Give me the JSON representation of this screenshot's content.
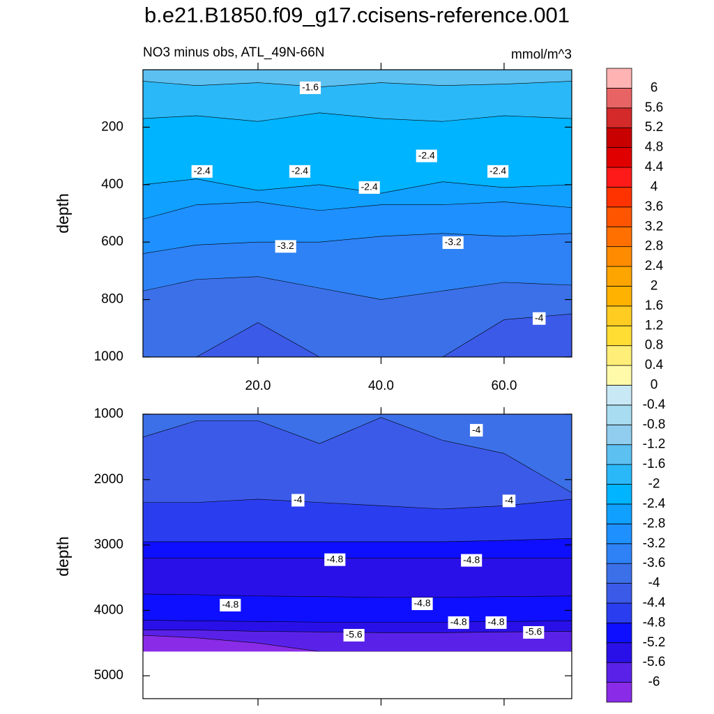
{
  "chart_data": {
    "type": "contour",
    "title": "b.e21.B1850.f09_g17.ccisens-reference.001",
    "subtitle": "NO3 minus obs, ATL_49N-66N",
    "units": "mmol/m^3",
    "x": [
      1.3,
      10,
      20,
      30,
      40,
      50,
      60,
      71
    ],
    "xlim": [
      1.3,
      71
    ],
    "colorbar": {
      "levels": [
        -6,
        -5.6,
        -5.2,
        -4.8,
        -4.4,
        -4,
        -3.6,
        -3.2,
        -2.8,
        -2.4,
        -2,
        -1.6,
        -1.2,
        -0.8,
        -0.4,
        0,
        0.4,
        0.8,
        1.2,
        1.6,
        2,
        2.4,
        2.8,
        3.2,
        3.6,
        4,
        4.4,
        4.8,
        5.2,
        5.6,
        6
      ],
      "colors": [
        "#8a2be8",
        "#5a22e8",
        "#2a10e8",
        "#0f0fff",
        "#2a3ef0",
        "#3c5ae8",
        "#3c70e8",
        "#2e82f5",
        "#1e90ff",
        "#10a0ff",
        "#00b4ff",
        "#2ab8f8",
        "#5cc0f0",
        "#90cdee",
        "#a8dcf0",
        "#c8e8f5",
        "#fffaaa",
        "#ffee77",
        "#ffdd33",
        "#ffcc22",
        "#ffb300",
        "#ffa500",
        "#ff8c00",
        "#ff7000",
        "#ff5500",
        "#ff3300",
        "#ff1a1a",
        "#e00000",
        "#c80000",
        "#d42a2a",
        "#e86464",
        "#ffb3b3"
      ]
    },
    "panels": [
      {
        "ylabel": "depth",
        "ylim": [
          0,
          1000
        ],
        "y_reversed": true,
        "yticks": [
          200,
          400,
          600,
          800,
          1000
        ],
        "xticks": [
          {
            "value": 20,
            "label": "20.0"
          },
          {
            "value": 40,
            "label": "40.0"
          },
          {
            "value": 60,
            "label": "60.0"
          }
        ],
        "show_xtick_labels": true,
        "layers": [
          {
            "class": -1.2,
            "top": [
              0,
              0,
              0,
              0,
              0,
              0,
              0,
              0
            ]
          },
          {
            "class": -1.6,
            "top": [
              40,
              55,
              45,
              60,
              45,
              55,
              50,
              40
            ]
          },
          {
            "class": -2,
            "top": [
              170,
              160,
              180,
              150,
              170,
              180,
              160,
              170
            ]
          },
          {
            "class": -2.4,
            "top": [
              400,
              380,
              420,
              400,
              430,
              390,
              410,
              400
            ]
          },
          {
            "class": -2.8,
            "top": [
              520,
              470,
              460,
              490,
              470,
              470,
              460,
              480
            ]
          },
          {
            "class": -3.2,
            "top": [
              640,
              610,
              600,
              600,
              580,
              570,
              580,
              570
            ]
          },
          {
            "class": -3.6,
            "top": [
              770,
              730,
              720,
              760,
              800,
              770,
              740,
              750
            ]
          },
          {
            "class": -4,
            "top": [
              1000,
              1000,
              880,
              1000,
              1000,
              1000,
              870,
              850
            ]
          }
        ],
        "contour_labels": [
          {
            "value": -1.6,
            "x": 28.5,
            "depth": 63
          },
          {
            "value": -2.4,
            "x": 10.9,
            "depth": 354
          },
          {
            "value": -2.4,
            "x": 26.8,
            "depth": 354
          },
          {
            "value": -2.4,
            "x": 38.1,
            "depth": 410
          },
          {
            "value": -2.4,
            "x": 47.4,
            "depth": 300
          },
          {
            "value": -2.4,
            "x": 59,
            "depth": 354
          },
          {
            "value": -3.2,
            "x": 24.5,
            "depth": 615
          },
          {
            "value": -3.2,
            "x": 51.7,
            "depth": 602
          },
          {
            "value": -4,
            "x": 65.7,
            "depth": 866
          }
        ]
      },
      {
        "ylabel": "depth",
        "ylim": [
          1000,
          5350
        ],
        "y_reversed": true,
        "yticks": [
          1000,
          2000,
          3000,
          4000,
          5000
        ],
        "xticks": [
          20,
          40,
          60
        ],
        "show_xtick_labels": false,
        "data_bottom": 4630,
        "layers": [
          {
            "class": -3.6,
            "top": [
              1000,
              1000,
              1000,
              1000,
              1000,
              1000,
              1000,
              1000
            ]
          },
          {
            "class": -4,
            "top": [
              1350,
              1100,
              1100,
              1450,
              1050,
              1400,
              1600,
              2200
            ]
          },
          {
            "class": -4.4,
            "top": [
              2350,
              2350,
              2300,
              2350,
              2400,
              2450,
              2400,
              2300
            ]
          },
          {
            "class": -4.8,
            "top": [
              2950,
              2950,
              2950,
              2950,
              2950,
              2950,
              2930,
              2900
            ]
          },
          {
            "class": -5.2,
            "top": [
              3200,
              3200,
              3200,
              3200,
              3200,
              3200,
              3200,
              3200
            ]
          },
          {
            "class": -4.8,
            "top": [
              3750,
              3760,
              3780,
              3790,
              3800,
              3800,
              3790,
              3780
            ]
          },
          {
            "class": -5.2,
            "top": [
              4150,
              4160,
              4170,
              4180,
              4180,
              4180,
              4170,
              4160
            ]
          },
          {
            "class": -5.6,
            "top": [
              4300,
              4300,
              4320,
              4330,
              4340,
              4340,
              4330,
              4320
            ]
          },
          {
            "class": -6,
            "top": [
              4380,
              4420,
              4500,
              4630,
              4630,
              4630,
              4630,
              4630
            ]
          }
        ],
        "contour_labels": [
          {
            "value": -4,
            "x": 55.5,
            "depth": 1246
          },
          {
            "value": -4,
            "x": 26.5,
            "depth": 2316
          },
          {
            "value": -4,
            "x": 60.8,
            "depth": 2326
          },
          {
            "value": -4.8,
            "x": 32.5,
            "depth": 3225
          },
          {
            "value": -4.8,
            "x": 54.7,
            "depth": 3235
          },
          {
            "value": -4.8,
            "x": 15.5,
            "depth": 3920
          },
          {
            "value": -4.8,
            "x": 46.7,
            "depth": 3900
          },
          {
            "value": -4.8,
            "x": 52.6,
            "depth": 4187
          },
          {
            "value": -4.8,
            "x": 58.7,
            "depth": 4187
          },
          {
            "value": -5.6,
            "x": 35.6,
            "depth": 4380
          },
          {
            "value": -5.6,
            "x": 64.8,
            "depth": 4337
          }
        ]
      }
    ]
  }
}
